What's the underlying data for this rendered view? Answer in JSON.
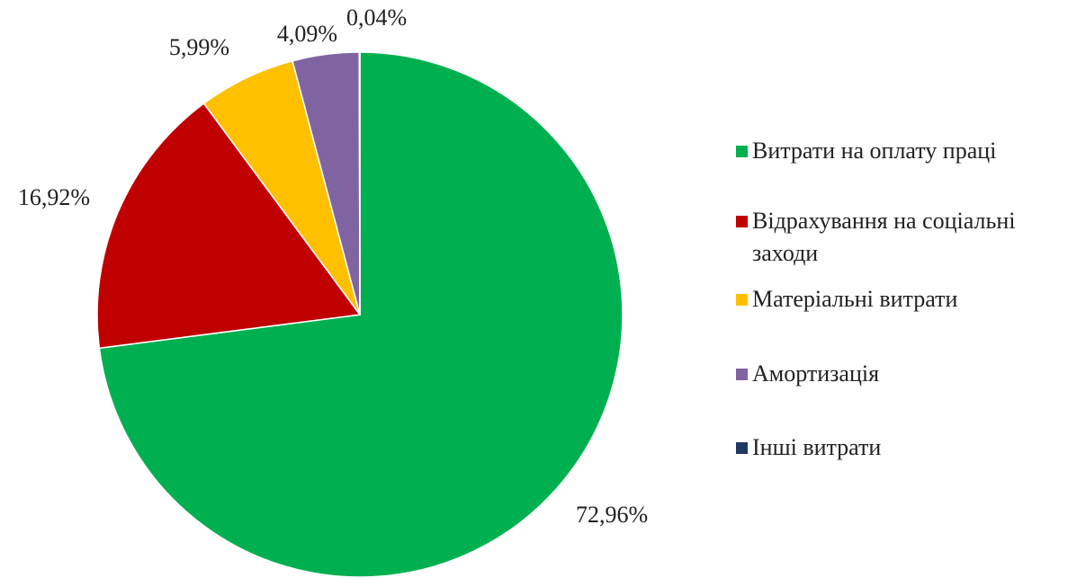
{
  "chart_data": {
    "type": "pie",
    "categories": [
      "Витрати на оплату праці",
      "Відрахування на соціальні заходи",
      "Матеріальні витрати",
      "Амортизація",
      "Інші витрати"
    ],
    "values": [
      72.96,
      16.92,
      5.99,
      4.09,
      0.04
    ],
    "value_labels": [
      "72,96%",
      "16,92%",
      "5,99%",
      "4,09%",
      "0,04%"
    ],
    "colors": [
      "#00b050",
      "#c00000",
      "#ffc000",
      "#8064a2",
      "#1f3864"
    ],
    "legend": "right"
  }
}
